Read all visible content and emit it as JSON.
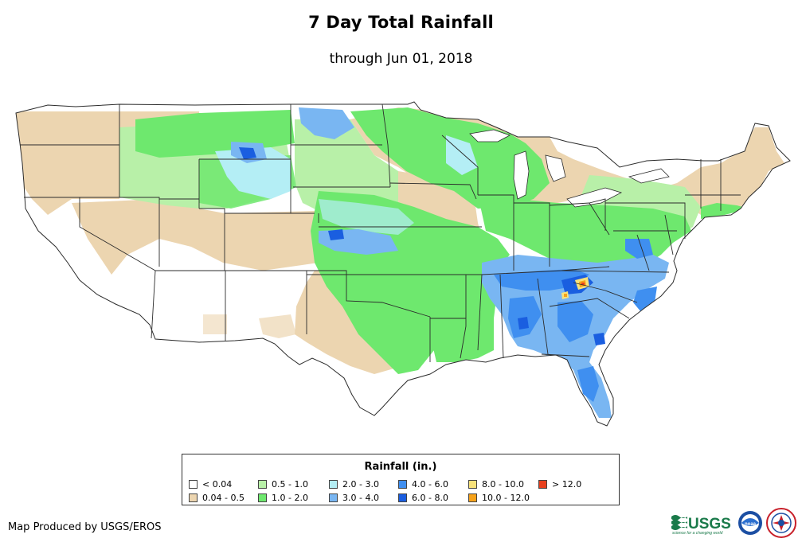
{
  "header": {
    "title": "7 Day Total Rainfall",
    "subtitle": "through Jun 01, 2018"
  },
  "legend": {
    "title": "Rainfall (in.)",
    "items": [
      {
        "label": "< 0.04",
        "color": "#ffffff"
      },
      {
        "label": "0.04 - 0.5",
        "color": "#ecd5b0"
      },
      {
        "label": "0.5 - 1.0",
        "color": "#b8f0a8"
      },
      {
        "label": "1.0 - 2.0",
        "color": "#6ee86e"
      },
      {
        "label": "2.0 - 3.0",
        "color": "#b4eef5"
      },
      {
        "label": "3.0 - 4.0",
        "color": "#79b6f2"
      },
      {
        "label": "4.0 - 6.0",
        "color": "#3f8ff0"
      },
      {
        "label": "6.0 - 8.0",
        "color": "#1a5ee0"
      },
      {
        "label": "8.0 - 10.0",
        "color": "#f8e27a"
      },
      {
        "label": "10.0 - 12.0",
        "color": "#f6a21a"
      },
      {
        "label": "> 12.0",
        "color": "#e8401e"
      }
    ]
  },
  "footer": {
    "credit": "Map Produced by USGS/EROS",
    "usgs_logo_text": "USGS",
    "usgs_tagline": "science for a changing world",
    "noaa_logo_text": "noaa"
  },
  "colors": {
    "state_border": "#2b2b2b",
    "background": "#ffffff"
  }
}
